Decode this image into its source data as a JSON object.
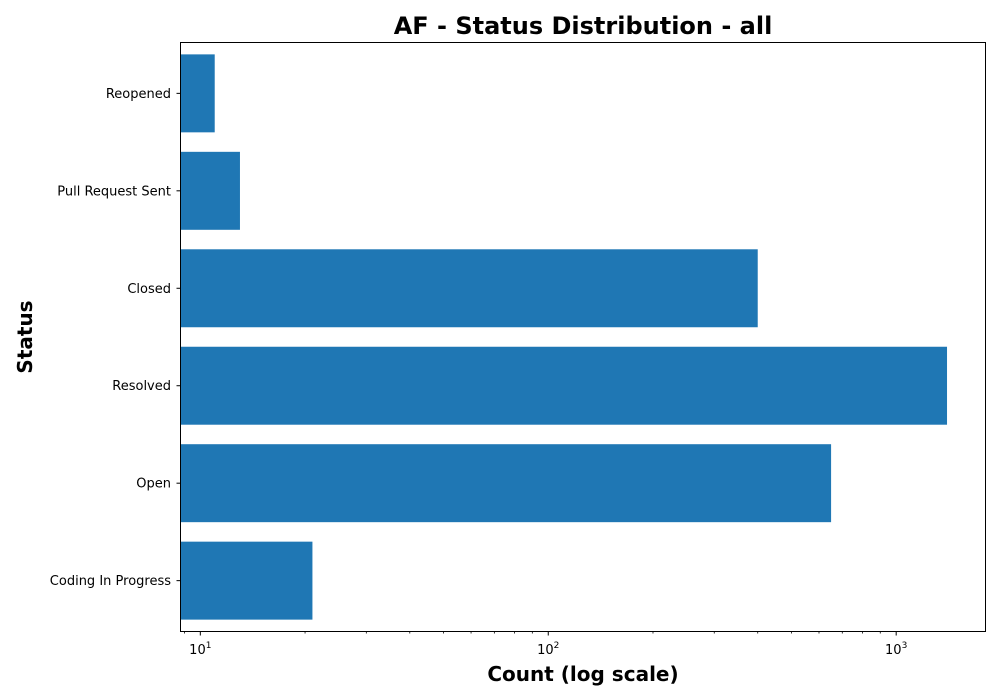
{
  "chart_data": {
    "type": "bar",
    "orientation": "horizontal",
    "title": "AF - Status Distribution - all",
    "xlabel": "Count (log scale)",
    "ylabel": "Status",
    "x_scale": "log",
    "xlim": [
      8.8,
      1800
    ],
    "categories": [
      "Coding In Progress",
      "Open",
      "Resolved",
      "Closed",
      "Pull Request Sent",
      "Reopened"
    ],
    "values": [
      21,
      650,
      1400,
      400,
      13,
      11
    ],
    "x_ticks": [
      {
        "base": "10",
        "exp": "1",
        "value": 10
      },
      {
        "base": "10",
        "exp": "2",
        "value": 100
      },
      {
        "base": "10",
        "exp": "3",
        "value": 1000
      }
    ],
    "bar_color": "#1f77b4",
    "grid": false,
    "legend": "none"
  }
}
